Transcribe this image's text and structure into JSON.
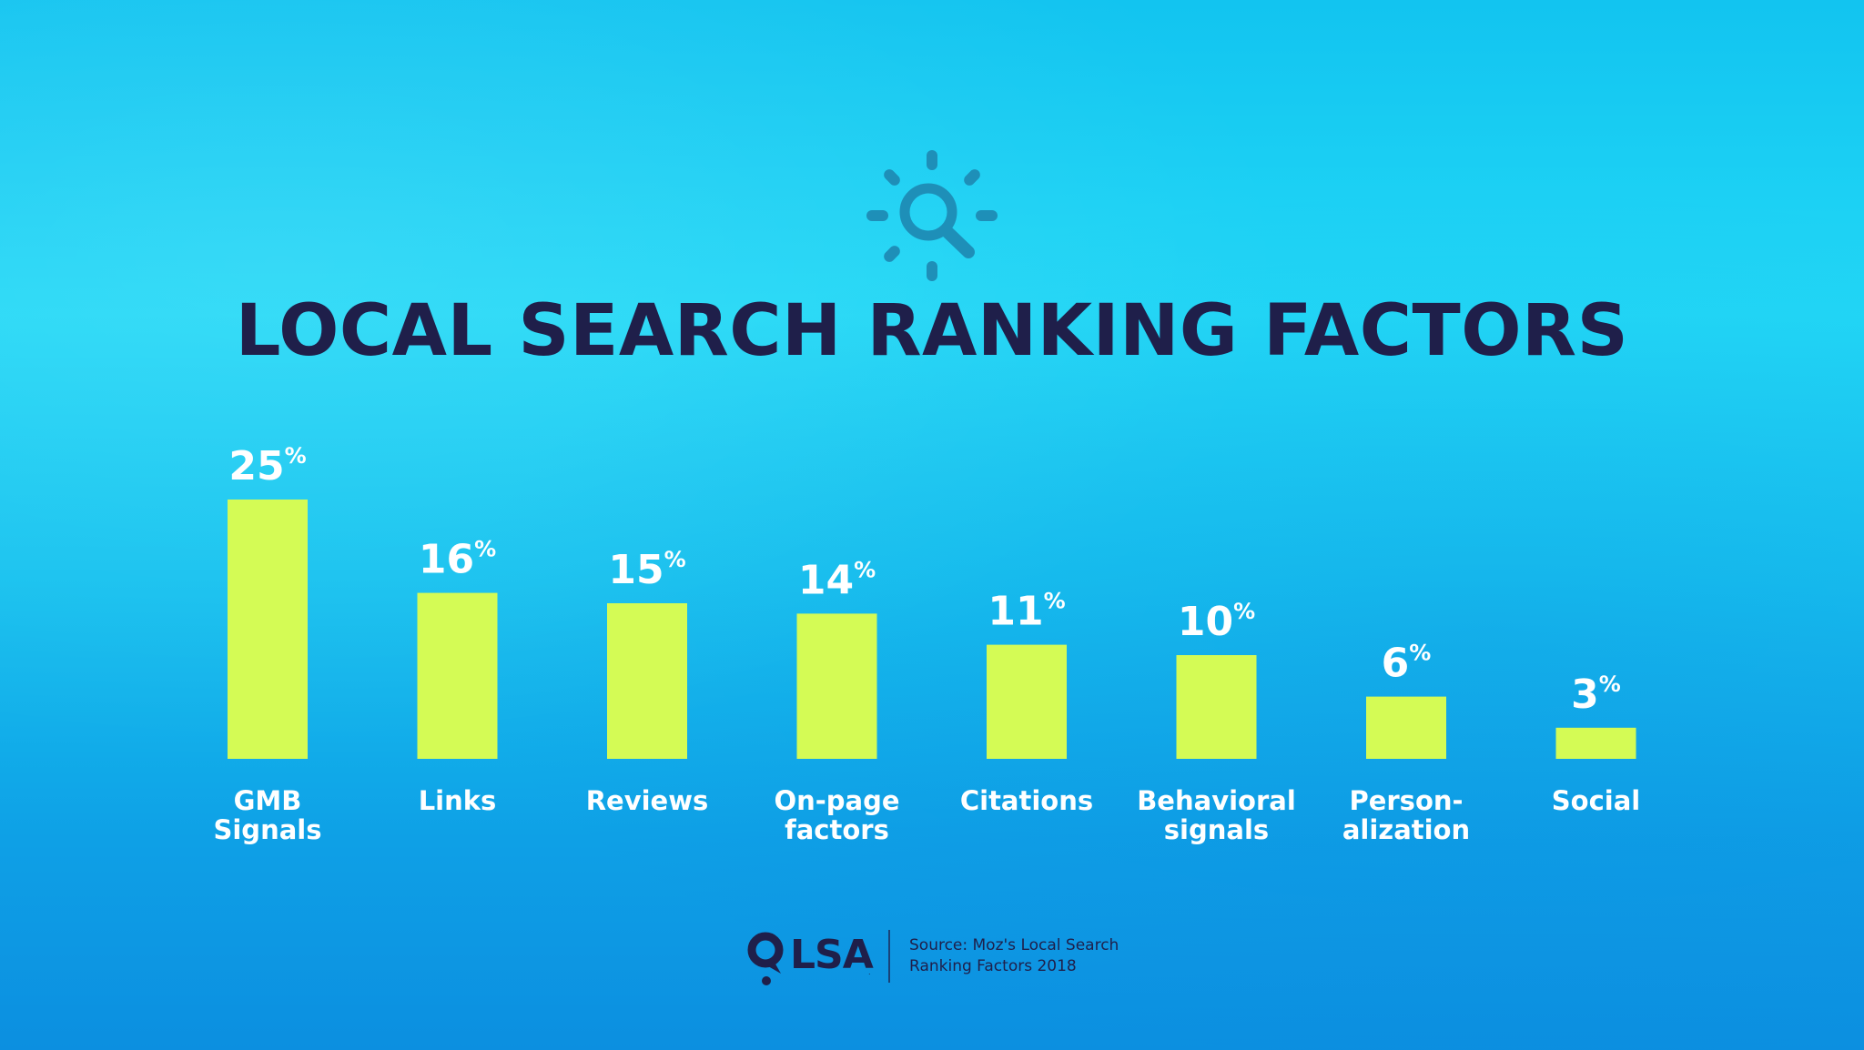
{
  "title": "LOCAL SEARCH RANKING FACTORS",
  "colors": {
    "bar": "#d4fb55",
    "title": "#1f1f4a",
    "label": "#ffffff",
    "icon": "#1e8fb8"
  },
  "icons": {
    "header": "sun-magnifier-icon",
    "logo": "map-pin-icon"
  },
  "chart_data": {
    "type": "bar",
    "title": "LOCAL SEARCH RANKING FACTORS",
    "categories": [
      [
        "GMB",
        "Signals"
      ],
      [
        "Links"
      ],
      [
        "Reviews"
      ],
      [
        "On-page",
        "factors"
      ],
      [
        "Citations"
      ],
      [
        "Behavioral",
        "signals"
      ],
      [
        "Person-",
        "alization"
      ],
      [
        "Social"
      ]
    ],
    "values": [
      25,
      16,
      15,
      14,
      11,
      10,
      6,
      3
    ],
    "value_labels": [
      "25",
      "16",
      "15",
      "14",
      "11",
      "10",
      "6",
      "3"
    ],
    "value_suffix": "%",
    "ylim": [
      0,
      25
    ],
    "grid": false,
    "xlabel": "",
    "ylabel": ""
  },
  "footer": {
    "logo_text": "LSA",
    "logo_tm": ".",
    "source_line1": "Source: Moz's Local Search",
    "source_line2": "Ranking Factors 2018"
  }
}
